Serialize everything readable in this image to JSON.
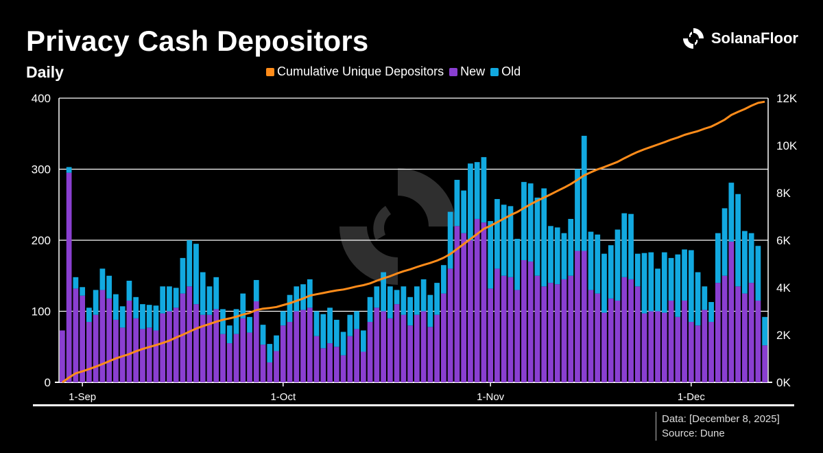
{
  "header": {
    "title": "Privacy Cash Depositors",
    "subtitle": "Daily",
    "brand": "SolanaFloor"
  },
  "legend": {
    "items": [
      {
        "label": "Cumulative Unique Depositors",
        "color": "#ff8c1a"
      },
      {
        "label": "New",
        "color": "#8a3fd1"
      },
      {
        "label": "Old",
        "color": "#12a9e0"
      }
    ]
  },
  "footer": {
    "data_note": "Data: [December 8, 2025]",
    "source": "Source: Dune"
  },
  "chart_data": {
    "type": "bar",
    "stacked": true,
    "x_start": "2025-08-29",
    "x_end": "2025-12-08",
    "x_ticks": [
      "1-Sep",
      "1-Oct",
      "1-Nov",
      "1-Dec"
    ],
    "x_tick_dates": [
      "2025-09-01",
      "2025-10-01",
      "2025-11-01",
      "2025-12-01"
    ],
    "ylim": [
      0,
      400
    ],
    "yticks": [
      0,
      100,
      200,
      300,
      400
    ],
    "y2lim": [
      0,
      12000
    ],
    "y2ticks": [
      "0K",
      "2K",
      "4K",
      "6K",
      "8K",
      "10K",
      "12K"
    ],
    "grid": true,
    "series": [
      {
        "name": "New",
        "color": "#8a3fd1",
        "values": [
          73,
          295,
          132,
          122,
          85,
          95,
          130,
          118,
          88,
          77,
          115,
          90,
          75,
          77,
          73,
          97,
          100,
          105,
          125,
          135,
          110,
          95,
          95,
          103,
          68,
          55,
          68,
          90,
          70,
          114,
          53,
          28,
          44,
          80,
          85,
          100,
          102,
          105,
          65,
          48,
          55,
          50,
          38,
          65,
          75,
          43,
          85,
          105,
          100,
          90,
          110,
          95,
          80,
          95,
          100,
          78,
          95,
          125,
          160,
          220,
          210,
          200,
          230,
          225,
          132,
          160,
          150,
          148,
          130,
          172,
          170,
          150,
          135,
          140,
          138,
          145,
          150,
          185,
          185,
          130,
          125,
          98,
          118,
          115,
          148,
          145,
          135,
          97,
          100,
          100,
          98,
          115,
          92,
          115,
          85,
          80,
          102,
          85,
          140,
          150,
          198,
          135,
          125,
          140,
          115,
          52
        ]
      },
      {
        "name": "Old",
        "color": "#12a9e0",
        "values": [
          0,
          8,
          16,
          12,
          20,
          35,
          30,
          32,
          36,
          30,
          28,
          30,
          35,
          32,
          35,
          38,
          35,
          28,
          50,
          65,
          85,
          60,
          40,
          45,
          35,
          25,
          35,
          35,
          22,
          30,
          28,
          26,
          22,
          20,
          38,
          35,
          36,
          40,
          35,
          48,
          50,
          38,
          33,
          30,
          25,
          30,
          35,
          30,
          55,
          45,
          20,
          40,
          40,
          40,
          45,
          45,
          45,
          40,
          80,
          65,
          60,
          108,
          80,
          92,
          95,
          98,
          100,
          100,
          72,
          110,
          110,
          110,
          138,
          80,
          80,
          65,
          80,
          115,
          162,
          82,
          83,
          83,
          75,
          100,
          90,
          92,
          46,
          85,
          83,
          60,
          85,
          60,
          88,
          72,
          101,
          75,
          33,
          28,
          70,
          95,
          83,
          130,
          88,
          70,
          77,
          40
        ]
      },
      {
        "name": "Cumulative Unique Depositors",
        "color": "#ff8c1a",
        "values": [
          0,
          200,
          380,
          460,
          560,
          660,
          770,
          890,
          1010,
          1100,
          1190,
          1310,
          1410,
          1490,
          1570,
          1660,
          1760,
          1890,
          2010,
          2140,
          2270,
          2370,
          2460,
          2560,
          2640,
          2700,
          2770,
          2860,
          2930,
          3050,
          3110,
          3140,
          3180,
          3260,
          3340,
          3440,
          3540,
          3660,
          3720,
          3770,
          3830,
          3880,
          3920,
          3980,
          4050,
          4100,
          4180,
          4290,
          4390,
          4480,
          4590,
          4690,
          4770,
          4870,
          4960,
          5040,
          5140,
          5260,
          5420,
          5630,
          5840,
          6050,
          6260,
          6480,
          6610,
          6760,
          6910,
          7060,
          7190,
          7360,
          7520,
          7670,
          7800,
          7940,
          8080,
          8220,
          8370,
          8550,
          8740,
          8870,
          8990,
          9090,
          9200,
          9310,
          9460,
          9600,
          9730,
          9840,
          9940,
          10040,
          10140,
          10250,
          10340,
          10450,
          10530,
          10610,
          10710,
          10800,
          10940,
          11090,
          11290,
          11420,
          11540,
          11680,
          11800,
          11850
        ]
      }
    ]
  }
}
